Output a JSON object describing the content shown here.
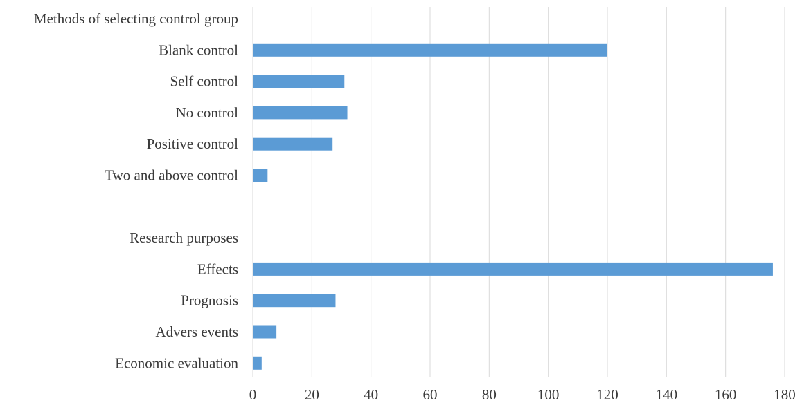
{
  "chart_data": {
    "type": "bar",
    "orientation": "horizontal",
    "categories": [
      "Methods of selecting control group",
      "Blank control",
      "Self control",
      "No control",
      "Positive control",
      "Two and above control",
      "",
      "Research purposes",
      "Effects",
      "Prognosis",
      "Advers events",
      "Economic evaluation"
    ],
    "values": [
      null,
      120,
      31,
      32,
      27,
      5,
      null,
      null,
      176,
      28,
      8,
      3
    ],
    "xlim": [
      0,
      180
    ],
    "xticks": [
      0,
      20,
      40,
      60,
      80,
      100,
      120,
      140,
      160,
      180
    ],
    "grid": true,
    "bar_color": "#5b9bd5",
    "grid_color": "#d9d9d9",
    "text_color": "#3a3a3a"
  }
}
